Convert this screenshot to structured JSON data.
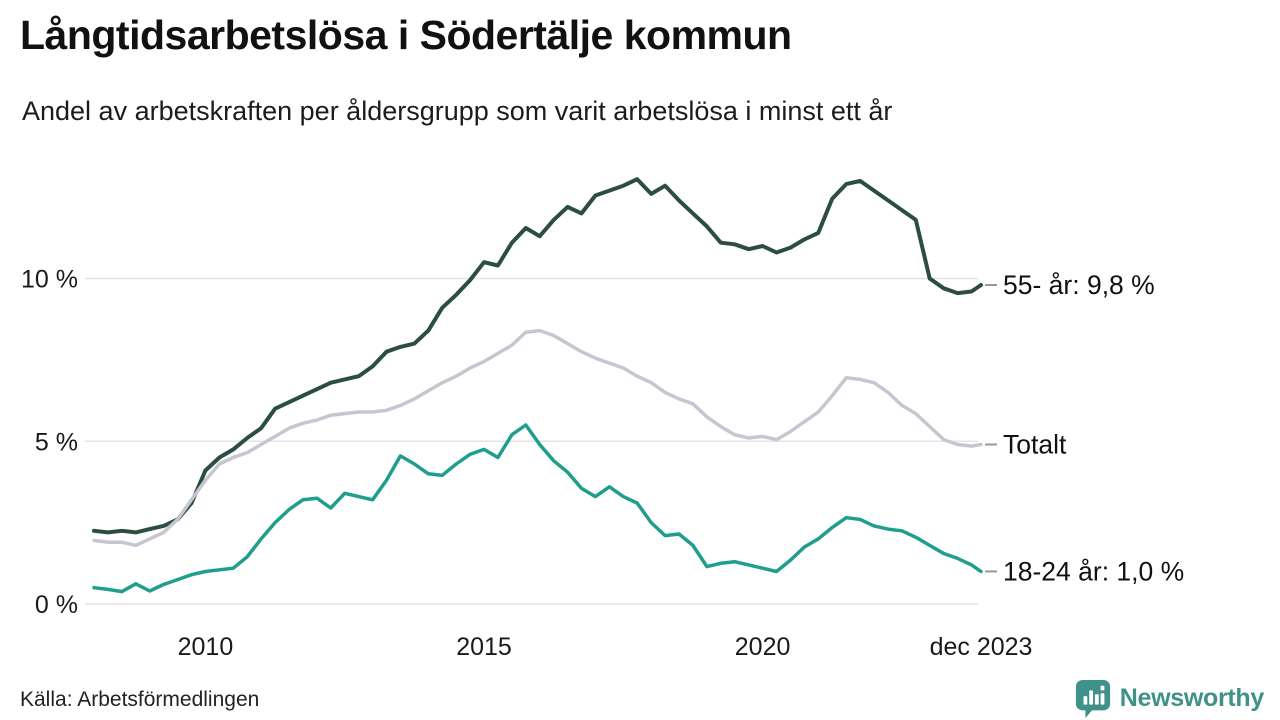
{
  "title": "Långtidsarbetslösa i Södertälje kommun",
  "subtitle": "Andel av arbetskraften per åldersgrupp som varit arbetslösa i minst ett år",
  "source": "Källa: Arbetsförmedlingen",
  "branding": {
    "name": "Newsworthy",
    "color": "#3f918a",
    "icon": "bar-chart-speech-bubble-icon"
  },
  "colors": {
    "background": "#ffffff",
    "gridline": "#e4e4e4",
    "axis_text": "#1a1a1a",
    "end_label_text": "#111111",
    "end_label_tick": "#999999",
    "series_55": "#2b4d42",
    "series_total": "#c7c5d2",
    "series_18_24": "#1f9e8d"
  },
  "chart_data": {
    "type": "line",
    "title": "Långtidsarbetslösa i Södertälje kommun",
    "subtitle": "Andel av arbetskraften per åldersgrupp som varit arbetslösa i minst ett år",
    "x_unit": "decimal_year",
    "xlim": [
      2008.0,
      2023.92
    ],
    "ylim": [
      0,
      13.5
    ],
    "grid": "horizontal",
    "legend_position": "right-end-labels",
    "y_ticks": [
      {
        "label": "0 %",
        "value": 0
      },
      {
        "label": "5 %",
        "value": 5
      },
      {
        "label": "10 %",
        "value": 10
      }
    ],
    "x_ticks": [
      {
        "label": "2010",
        "year": 2010
      },
      {
        "label": "2015",
        "year": 2015
      },
      {
        "label": "2020",
        "year": 2020
      },
      {
        "label": "dec 2023",
        "year": 2023.92
      }
    ],
    "x": [
      2008.0,
      2008.25,
      2008.5,
      2008.75,
      2009.0,
      2009.25,
      2009.5,
      2009.75,
      2010.0,
      2010.25,
      2010.5,
      2010.75,
      2011.0,
      2011.25,
      2011.5,
      2011.75,
      2012.0,
      2012.25,
      2012.5,
      2012.75,
      2013.0,
      2013.25,
      2013.5,
      2013.75,
      2014.0,
      2014.25,
      2014.5,
      2014.75,
      2015.0,
      2015.25,
      2015.5,
      2015.75,
      2016.0,
      2016.25,
      2016.5,
      2016.75,
      2017.0,
      2017.25,
      2017.5,
      2017.75,
      2018.0,
      2018.25,
      2018.5,
      2018.75,
      2019.0,
      2019.25,
      2019.5,
      2019.75,
      2020.0,
      2020.25,
      2020.5,
      2020.75,
      2021.0,
      2021.25,
      2021.5,
      2021.75,
      2022.0,
      2022.25,
      2022.5,
      2022.75,
      2023.0,
      2023.25,
      2023.5,
      2023.75,
      2023.92
    ],
    "series": [
      {
        "name": "55- år",
        "end_label": "55- år: 9,8 %",
        "last_value_label": "9,8 %",
        "color": "#2b4d42",
        "stroke_width": 4,
        "values": [
          2.25,
          2.2,
          2.25,
          2.2,
          2.3,
          2.4,
          2.6,
          3.1,
          4.1,
          4.5,
          4.75,
          5.1,
          5.4,
          6.0,
          6.2,
          6.4,
          6.6,
          6.8,
          6.9,
          7.0,
          7.3,
          7.75,
          7.9,
          8.0,
          8.4,
          9.1,
          9.5,
          9.95,
          10.5,
          10.4,
          11.1,
          11.55,
          11.3,
          11.8,
          12.2,
          12.0,
          12.55,
          12.7,
          12.85,
          13.05,
          12.6,
          12.85,
          12.4,
          12.0,
          11.6,
          11.1,
          11.05,
          10.9,
          11.0,
          10.8,
          10.95,
          11.2,
          11.4,
          12.45,
          12.9,
          13.0,
          12.7,
          12.4,
          12.1,
          11.8,
          10.0,
          9.7,
          9.55,
          9.6,
          9.8
        ]
      },
      {
        "name": "Totalt",
        "end_label": "Totalt",
        "last_value_label": "4,9 %",
        "color": "#c7c5d2",
        "stroke_width": 3.5,
        "values": [
          1.95,
          1.9,
          1.9,
          1.8,
          2.0,
          2.2,
          2.6,
          3.2,
          3.8,
          4.3,
          4.5,
          4.65,
          4.9,
          5.15,
          5.4,
          5.55,
          5.65,
          5.8,
          5.85,
          5.9,
          5.9,
          5.95,
          6.1,
          6.3,
          6.55,
          6.8,
          7.0,
          7.25,
          7.45,
          7.7,
          7.95,
          8.35,
          8.4,
          8.25,
          8.0,
          7.75,
          7.55,
          7.4,
          7.25,
          7.0,
          6.8,
          6.5,
          6.3,
          6.15,
          5.75,
          5.45,
          5.2,
          5.1,
          5.15,
          5.05,
          5.3,
          5.6,
          5.9,
          6.4,
          6.95,
          6.9,
          6.8,
          6.5,
          6.1,
          5.85,
          5.45,
          5.05,
          4.9,
          4.85,
          4.9
        ]
      },
      {
        "name": "18-24 år",
        "end_label": "18-24 år: 1,0 %",
        "last_value_label": "1,0 %",
        "color": "#1f9e8d",
        "stroke_width": 3.5,
        "values": [
          0.5,
          0.45,
          0.38,
          0.62,
          0.4,
          0.6,
          0.75,
          0.9,
          1.0,
          1.05,
          1.1,
          1.45,
          2.0,
          2.5,
          2.9,
          3.2,
          3.25,
          2.95,
          3.4,
          3.3,
          3.2,
          3.8,
          4.55,
          4.3,
          4.0,
          3.95,
          4.3,
          4.6,
          4.75,
          4.5,
          5.2,
          5.5,
          4.9,
          4.4,
          4.05,
          3.55,
          3.3,
          3.6,
          3.3,
          3.1,
          2.5,
          2.1,
          2.15,
          1.8,
          1.15,
          1.25,
          1.3,
          1.2,
          1.1,
          1.0,
          1.35,
          1.75,
          2.0,
          2.35,
          2.65,
          2.6,
          2.4,
          2.3,
          2.25,
          2.05,
          1.8,
          1.55,
          1.4,
          1.2,
          1.0
        ]
      }
    ]
  }
}
